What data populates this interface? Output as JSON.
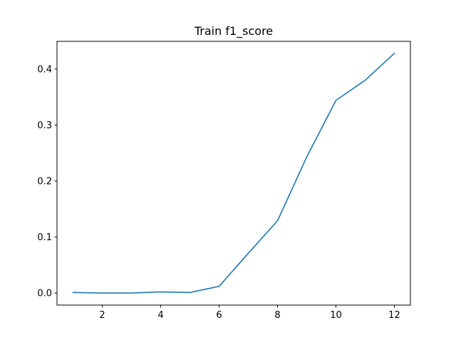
{
  "chart_data": {
    "type": "line",
    "title": "Train f1_score",
    "xlabel": "",
    "ylabel": "",
    "xlim": [
      0.45,
      12.55
    ],
    "ylim": [
      -0.0215,
      0.4495
    ],
    "x_ticks": [
      2,
      4,
      6,
      8,
      10,
      12
    ],
    "x_tick_labels": [
      "2",
      "4",
      "6",
      "8",
      "10",
      "12"
    ],
    "y_ticks": [
      0.0,
      0.1,
      0.2,
      0.3,
      0.4
    ],
    "y_tick_labels": [
      "0.0",
      "0.1",
      "0.2",
      "0.3",
      "0.4"
    ],
    "grid": false,
    "series": [
      {
        "color": "#1f77b4",
        "x": [
          1,
          2,
          3,
          4,
          5,
          6,
          7,
          8,
          9,
          10,
          11,
          12
        ],
        "y": [
          0.001,
          0.0,
          0.0,
          0.002,
          0.001,
          0.012,
          0.071,
          0.129,
          0.243,
          0.344,
          0.38,
          0.428
        ]
      }
    ]
  }
}
